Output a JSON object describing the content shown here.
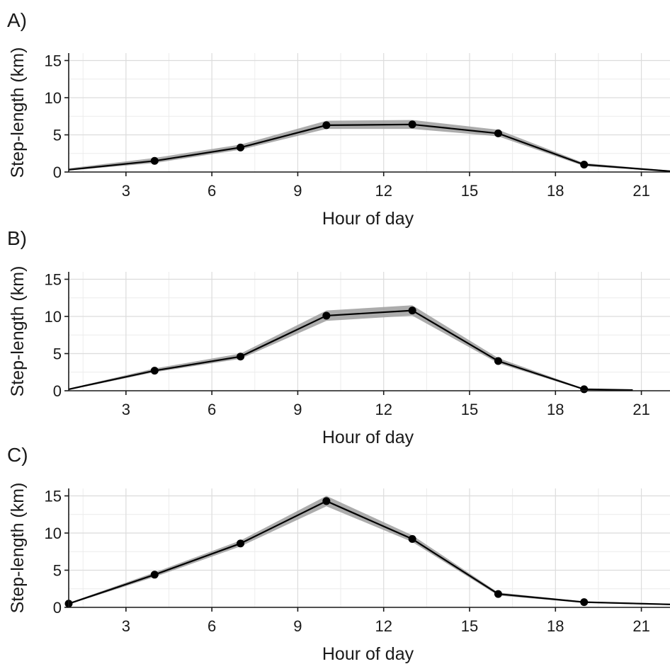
{
  "colors": {
    "line": "#000000",
    "ribbon": "#9e9e9e",
    "grid": "#dcdcdc",
    "text": "#1a1a1a"
  },
  "chart_data": [
    {
      "type": "line",
      "panel_label": "A)",
      "xlabel": "Hour of day",
      "ylabel": "Step-length (km)",
      "xlim": [
        1,
        22
      ],
      "ylim": [
        0,
        16
      ],
      "xticks": [
        3,
        6,
        9,
        12,
        15,
        18,
        21
      ],
      "yticks": [
        0,
        5,
        10,
        15
      ],
      "grid": true,
      "x": [
        1,
        4,
        7,
        10,
        13,
        16,
        19,
        22
      ],
      "y": [
        0.3,
        1.5,
        3.3,
        6.3,
        6.4,
        5.2,
        1.0,
        0.1
      ],
      "ribbon_lower": [
        0.2,
        1.2,
        3.0,
        5.8,
        5.8,
        4.8,
        0.8,
        0.05
      ],
      "ribbon_upper": [
        0.5,
        1.9,
        3.7,
        6.9,
        7.0,
        5.7,
        1.2,
        0.2
      ],
      "point_x": [
        4,
        7,
        10,
        13,
        16,
        19
      ]
    },
    {
      "type": "line",
      "panel_label": "B)",
      "xlabel": "Hour of day",
      "ylabel": "Step-length (km)",
      "xlim": [
        1,
        22
      ],
      "ylim": [
        0,
        16
      ],
      "xticks": [
        3,
        6,
        9,
        12,
        15,
        18,
        21
      ],
      "yticks": [
        0,
        5,
        10,
        15
      ],
      "grid": true,
      "x": [
        1,
        4,
        7,
        10,
        13,
        16,
        19,
        20.7
      ],
      "y": [
        0.2,
        2.7,
        4.6,
        10.1,
        10.8,
        4.0,
        0.2,
        0.1
      ],
      "ribbon_lower": [
        0.1,
        2.5,
        4.3,
        9.4,
        10.1,
        3.7,
        0.1,
        0.05
      ],
      "ribbon_upper": [
        0.3,
        3.0,
        5.0,
        10.8,
        11.5,
        4.4,
        0.3,
        0.15
      ],
      "point_x": [
        4,
        7,
        10,
        13,
        16,
        19
      ]
    },
    {
      "type": "line",
      "panel_label": "C)",
      "xlabel": "Hour of day",
      "ylabel": "Step-length (km)",
      "xlim": [
        1,
        22
      ],
      "ylim": [
        0,
        16
      ],
      "xticks": [
        3,
        6,
        9,
        12,
        15,
        18,
        21
      ],
      "yticks": [
        0,
        5,
        10,
        15
      ],
      "grid": true,
      "x": [
        1,
        4,
        7,
        10,
        13,
        16,
        19,
        22
      ],
      "y": [
        0.5,
        4.4,
        8.6,
        14.3,
        9.2,
        1.8,
        0.7,
        0.4
      ],
      "ribbon_lower": [
        0.4,
        4.1,
        8.2,
        13.6,
        8.8,
        1.6,
        0.6,
        0.3
      ],
      "ribbon_upper": [
        0.6,
        4.7,
        9.0,
        15.0,
        9.7,
        2.0,
        0.8,
        0.5
      ],
      "point_x": [
        1,
        4,
        7,
        10,
        13,
        16,
        19
      ]
    }
  ]
}
